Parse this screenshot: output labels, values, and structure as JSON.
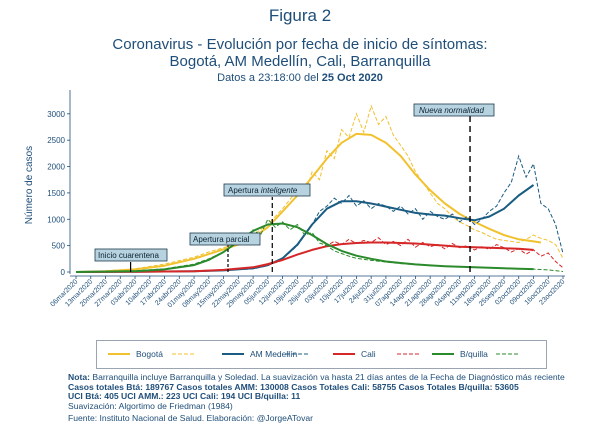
{
  "header": {
    "figure_label": "Figura 2",
    "title_line1": "Coronavirus - Evolución por fecha de inicio de síntomas:",
    "title_line2": "Bogotá, AM Medellín, Cali, Barranquilla",
    "subtitle_prefix": "Datos a 23:18:00 del",
    "subtitle_date": "25 Oct 2020"
  },
  "colors": {
    "bogota": "#f2c12e",
    "medellin": "#1a5c82",
    "cali": "#d62728",
    "barranquilla": "#2b8a2b",
    "axis": "#1f4e79",
    "annotation_fill": "#b8d3e0"
  },
  "chart_data": {
    "type": "line",
    "ylabel": "Número de casos",
    "xlabel": "",
    "ylim": [
      0,
      3300
    ],
    "yticks": [
      0,
      500,
      1000,
      1500,
      2000,
      2500,
      3000
    ],
    "x_tick_labels": [
      "06mar2020",
      "13mar2020",
      "20mar2020",
      "27mar2020",
      "03abr2020",
      "10abr2020",
      "17abr2020",
      "24abr2020",
      "01may2020",
      "08may2020",
      "15may2020",
      "22may2020",
      "29may2020",
      "05jun2020",
      "12jun2020",
      "19jun2020",
      "26jun2020",
      "03jul2020",
      "10jul2020",
      "17jul2020",
      "24jul2020",
      "31jul2020",
      "07ago2020",
      "14ago2020",
      "21ago2020",
      "28ago2020",
      "04sep2020",
      "11sep2020",
      "18sep2020",
      "25sep2020",
      "02oct2020",
      "09oct2020",
      "16oct2020",
      "23oct2020"
    ],
    "x_units": "weeks since 06mar2020",
    "grid": false,
    "legend_position": "bottom",
    "series": [
      {
        "name": "Bogotá",
        "key": "bogota",
        "raw_x": [
          0,
          2,
          4,
          6,
          8,
          9,
          10,
          11,
          12,
          13,
          14,
          15,
          15.5,
          16,
          16.5,
          17,
          17.5,
          18,
          18.5,
          19,
          19.5,
          20,
          20.5,
          21,
          21.5,
          22,
          22.5,
          23,
          23.5,
          24,
          24.5,
          25,
          25.5,
          26,
          26.5,
          27,
          27.5,
          28,
          28.5,
          29,
          29.5,
          30,
          30.5,
          31,
          31.5,
          32,
          32.5,
          33
        ],
        "raw_y": [
          0,
          20,
          60,
          150,
          280,
          380,
          460,
          560,
          700,
          900,
          1200,
          1550,
          1450,
          1900,
          1750,
          2300,
          2150,
          2700,
          2550,
          3000,
          2650,
          3150,
          2800,
          2950,
          2600,
          2400,
          2200,
          1900,
          1700,
          1500,
          1300,
          1200,
          1050,
          950,
          880,
          800,
          750,
          680,
          620,
          600,
          580,
          560,
          620,
          700,
          640,
          600,
          520,
          260
        ],
        "smooth_x": [
          0,
          2,
          4,
          6,
          8,
          9,
          10,
          11,
          12,
          13,
          14,
          15,
          16,
          17,
          18,
          19,
          20,
          21,
          22,
          23,
          24,
          25,
          26,
          27,
          28,
          29,
          30,
          31,
          31.5
        ],
        "smooth_y": [
          0,
          15,
          50,
          120,
          250,
          340,
          430,
          520,
          650,
          850,
          1150,
          1450,
          1800,
          2150,
          2450,
          2620,
          2600,
          2450,
          2200,
          1850,
          1550,
          1300,
          1100,
          950,
          820,
          700,
          620,
          580,
          560
        ]
      },
      {
        "name": "AM Medellín",
        "key": "medellin",
        "raw_x": [
          0,
          4,
          8,
          10,
          12,
          13,
          14,
          15,
          16,
          16.5,
          17,
          17.5,
          18,
          18.5,
          19,
          19.5,
          20,
          20.5,
          21,
          21.5,
          22,
          22.5,
          23,
          23.5,
          24,
          24.5,
          25,
          25.5,
          26,
          26.5,
          27,
          27.5,
          28,
          28.5,
          29,
          29.5,
          30,
          30.5,
          31,
          31.5,
          32,
          32.5,
          33
        ],
        "raw_y": [
          0,
          5,
          15,
          30,
          60,
          120,
          250,
          500,
          900,
          1150,
          1250,
          1400,
          1300,
          1450,
          1250,
          1350,
          1200,
          1300,
          1250,
          1150,
          1250,
          1100,
          1200,
          1000,
          1150,
          1050,
          1000,
          1100,
          950,
          1050,
          900,
          1000,
          1150,
          1250,
          1500,
          1700,
          2200,
          1800,
          2050,
          1300,
          1200,
          900,
          350
        ],
        "smooth_x": [
          0,
          4,
          8,
          10,
          12,
          13,
          14,
          15,
          16,
          17,
          18,
          19,
          20,
          21,
          22,
          23,
          24,
          25,
          26,
          27,
          28,
          29,
          30,
          31
        ],
        "smooth_y": [
          0,
          5,
          15,
          30,
          70,
          130,
          260,
          520,
          900,
          1200,
          1340,
          1340,
          1300,
          1240,
          1180,
          1120,
          1090,
          1070,
          1020,
          980,
          1050,
          1200,
          1450,
          1650
        ]
      },
      {
        "name": "Cali",
        "key": "cali",
        "raw_x": [
          0,
          4,
          8,
          10,
          12,
          13,
          14,
          15,
          16,
          17,
          17.5,
          18,
          18.5,
          19,
          19.5,
          20,
          20.5,
          21,
          21.5,
          22,
          22.5,
          23,
          23.5,
          24,
          24.5,
          25,
          25.5,
          26,
          26.5,
          27,
          27.5,
          28,
          28.5,
          29,
          29.5,
          30,
          30.5,
          31,
          31.5,
          32,
          32.5,
          33
        ],
        "raw_y": [
          0,
          5,
          15,
          40,
          80,
          130,
          220,
          330,
          420,
          500,
          580,
          520,
          620,
          540,
          600,
          560,
          650,
          520,
          580,
          500,
          620,
          470,
          560,
          480,
          520,
          440,
          540,
          460,
          500,
          420,
          480,
          430,
          520,
          460,
          380,
          440,
          340,
          420,
          300,
          360,
          200,
          80
        ],
        "smooth_x": [
          0,
          4,
          8,
          10,
          12,
          13,
          14,
          15,
          16,
          17,
          18,
          19,
          20,
          21,
          22,
          23,
          24,
          25,
          26,
          27,
          28,
          29,
          30,
          31
        ],
        "smooth_y": [
          0,
          5,
          15,
          40,
          90,
          150,
          230,
          330,
          420,
          490,
          530,
          550,
          560,
          560,
          550,
          540,
          520,
          500,
          480,
          470,
          460,
          450,
          440,
          420
        ]
      },
      {
        "name": "B/quilla",
        "key": "barranquilla",
        "raw_x": [
          0,
          4,
          6,
          8,
          9,
          10,
          11,
          11.5,
          12,
          12.5,
          13,
          13.5,
          14,
          14.5,
          15,
          15.5,
          16,
          16.5,
          17,
          17.5,
          18,
          18.5,
          19,
          20,
          21,
          22,
          23,
          24,
          25,
          26,
          27,
          28,
          29,
          30,
          31,
          32,
          33
        ],
        "raw_y": [
          0,
          20,
          60,
          150,
          250,
          380,
          600,
          520,
          800,
          700,
          1000,
          850,
          950,
          800,
          900,
          700,
          750,
          550,
          500,
          400,
          350,
          300,
          260,
          220,
          190,
          160,
          140,
          120,
          110,
          100,
          90,
          80,
          70,
          60,
          55,
          40,
          10
        ],
        "smooth_x": [
          0,
          4,
          6,
          8,
          9,
          10,
          11,
          12,
          13,
          14,
          15,
          16,
          17,
          18,
          19,
          20,
          21,
          22,
          23,
          24,
          25,
          26,
          27,
          28,
          29,
          30,
          31
        ],
        "smooth_y": [
          0,
          15,
          50,
          130,
          230,
          380,
          580,
          780,
          900,
          920,
          850,
          700,
          530,
          400,
          310,
          250,
          200,
          170,
          145,
          125,
          110,
          100,
          90,
          80,
          70,
          60,
          55
        ]
      }
    ],
    "annotations": [
      {
        "label": "Inicio cuarentena",
        "x": 3.7,
        "y": 80
      },
      {
        "label": "Apertura parcial",
        "x": 10.3,
        "y": 450
      },
      {
        "label_plain": "Apertura ",
        "label_italic": "inteligente",
        "x": 13.3,
        "y": 1300
      },
      {
        "label": "Nueva normalidad",
        "x_week": 26.7,
        "y": 2950
      }
    ]
  },
  "notes": {
    "line1": "Nota: Barranquilla incluye Barranquilla y Soledad. La suavización va hasta 21 días antes de la Fecha de Diagnóstico más reciente",
    "line2": "Casos totales Btá: 189767 Casos totales AMM: 130008  Casos Totales Cali: 58755 Casos Totales B/quilla: 53605",
    "line3": "UCI Btá: 405 UCI AMM.: 223 UCI Cali: 194 UCI B/quilla: 11",
    "line4": "Suavización: Algortimo de Friedman (1984)",
    "line5": "Fuente: Instituto Nacional de Salud. Elaboración: @JorgeATovar"
  }
}
